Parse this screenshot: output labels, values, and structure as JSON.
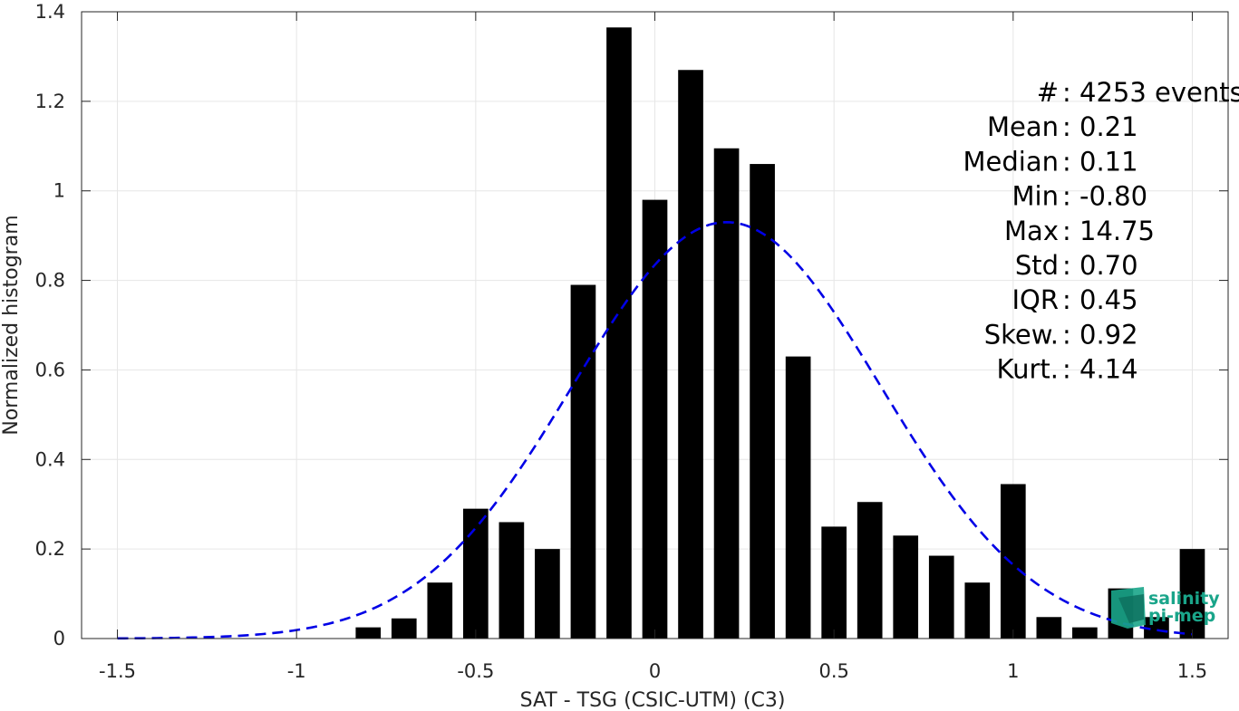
{
  "chart_data": {
    "type": "bar",
    "title": "",
    "xlabel": "SAT - TSG (CSIC-UTM) (C3)",
    "ylabel": "Normalized histogram",
    "xlim": [
      -1.6,
      1.6
    ],
    "ylim": [
      0,
      1.4
    ],
    "grid": true,
    "x_ticks": [
      -1.5,
      -1,
      -0.5,
      0,
      0.5,
      1,
      1.5
    ],
    "x_tick_labels": [
      "-1.5",
      "-1",
      "-0.5",
      "0",
      "0.5",
      "1",
      "1.5"
    ],
    "y_ticks": [
      0,
      0.2,
      0.4,
      0.6,
      0.8,
      1,
      1.2,
      1.4
    ],
    "y_tick_labels": [
      "0",
      "0.2",
      "0.4",
      "0.6",
      "0.8",
      "1",
      "1.2",
      "1.4"
    ],
    "bin_width": 0.1,
    "bars": {
      "x": [
        -0.8,
        -0.7,
        -0.6,
        -0.5,
        -0.4,
        -0.3,
        -0.2,
        -0.1,
        0.0,
        0.1,
        0.2,
        0.3,
        0.4,
        0.5,
        0.6,
        0.7,
        0.8,
        0.9,
        1.0,
        1.1,
        1.2,
        1.3,
        1.4,
        1.5
      ],
      "values": [
        0.025,
        0.045,
        0.125,
        0.29,
        0.26,
        0.2,
        0.79,
        1.365,
        0.98,
        1.27,
        1.095,
        1.06,
        0.63,
        0.25,
        0.305,
        0.23,
        0.185,
        0.125,
        0.345,
        0.048,
        0.025,
        0.112,
        0.048,
        0.2
      ],
      "color": "#000000"
    },
    "fit_curve": {
      "style": "dashed",
      "color": "#0000e6",
      "mean": 0.2,
      "std": 0.43,
      "peak": 0.93,
      "x_range": [
        -1.5,
        1.5
      ]
    },
    "annotations": [
      {
        "label": "#",
        "value": ": 4253 events"
      },
      {
        "label": "Mean",
        "value": ": 0.21"
      },
      {
        "label": "Median",
        "value": ": 0.11"
      },
      {
        "label": "Min",
        "value": ": -0.80"
      },
      {
        "label": "Max",
        "value": ": 14.75"
      },
      {
        "label": "Std",
        "value": ": 0.70"
      },
      {
        "label": "IQR",
        "value": ": 0.45"
      },
      {
        "label": "Skew.",
        "value": ": 0.92"
      },
      {
        "label": "Kurt.",
        "value": ": 4.14"
      }
    ]
  },
  "logo": {
    "line1": "salinity",
    "line2": "pi-mep",
    "color": "#1aa58a"
  }
}
